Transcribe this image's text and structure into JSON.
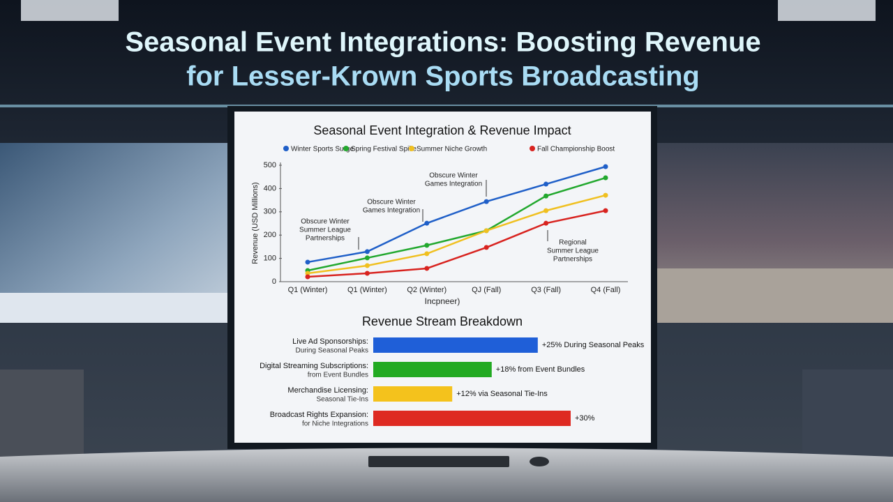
{
  "headline": [
    "Seasonal Event Integrations: Boosting Revenue",
    "for Lesser-Krown Sports Broadcasting"
  ],
  "chart_data": [
    {
      "type": "line",
      "title": "Seasonal Event Integration & Revenue Impact",
      "x_label": "Incpneer)",
      "y_label": "Revenue (USD Millions)",
      "categories": [
        "Q1 (Winter)",
        "Q1 (Winter)",
        "Q2 (Winter)",
        "QJ (Fall)",
        "Q3 (Fall)",
        "Q4 (Fall)"
      ],
      "series": [
        {
          "name": "Winter Sports Surge",
          "color": "#1f5fc8",
          "values": [
            84,
            129,
            251,
            344,
            419,
            494
          ]
        },
        {
          "name": "Spring Festival Spike",
          "color": "#22a82e",
          "values": [
            48,
            102,
            156,
            219,
            368,
            446
          ]
        },
        {
          "name": "Summer Niche Growth",
          "color": "#f0c020",
          "values": [
            36,
            69,
            120,
            219,
            305,
            371
          ]
        },
        {
          "name": "Fall Championship Boost",
          "color": "#d8231f",
          "values": [
            21,
            36,
            57,
            147,
            251,
            305
          ]
        }
      ],
      "ylim": [
        0,
        500
      ],
      "yticks": [
        0,
        100,
        200,
        300,
        400,
        500
      ],
      "annotations": [
        [
          "Obscure Winter",
          "Summer League",
          "Partnerships"
        ],
        [
          "Obscure Winter",
          "Games Integration"
        ],
        [
          "Obscure Winter",
          "Games Integration"
        ],
        [
          "Regional",
          "Summer League",
          "Partnerships"
        ]
      ]
    },
    {
      "type": "hbar",
      "title": "Revenue Stream Breakdown",
      "categories": [
        "Live Ad Sponsorships:",
        "Digital Streaming Subscriptions:",
        "Merchandise Licensing:",
        "Broadcast Rights Expansion:"
      ],
      "subcategories": [
        "During Seasonal Peaks",
        "from Event Bundles",
        "Seasonal Tie-Ins",
        "for Niche Integrations"
      ],
      "values": [
        25,
        18,
        12,
        30
      ],
      "value_labels": [
        "+25% During Seasonal Peaks",
        "+18% from Event Bundles",
        "+12% via Seasonal Tie-Ins",
        "+30%"
      ],
      "colors": [
        "#1f5fd8",
        "#22aa22",
        "#f4c21c",
        "#de2a22"
      ]
    }
  ]
}
